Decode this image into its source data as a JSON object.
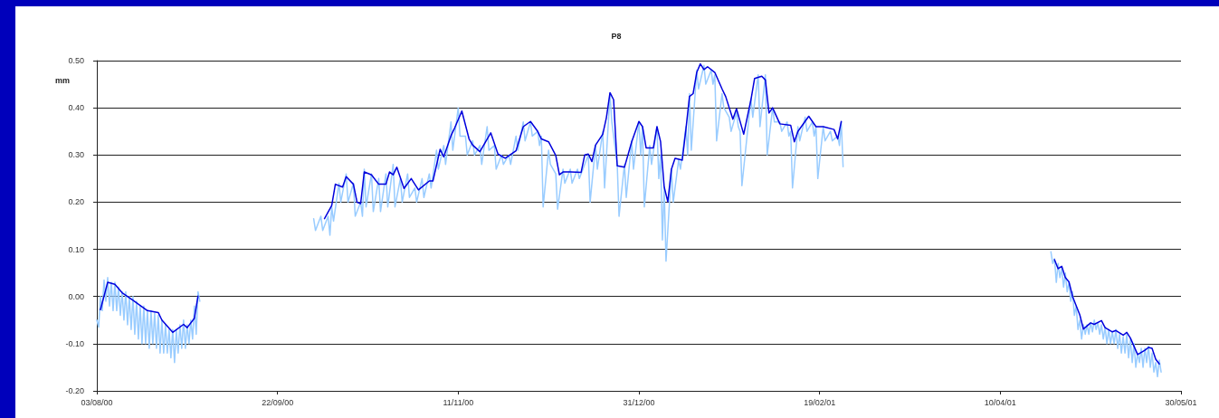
{
  "chart_data": {
    "type": "line",
    "title": "P8",
    "ylabel": "mm",
    "xlim": [
      "2000-08-03",
      "2001-05-30"
    ],
    "xticks": [
      {
        "value": "2000-08-03",
        "label": "03/08/00"
      },
      {
        "value": "2000-09-22",
        "label": "22/09/00"
      },
      {
        "value": "2000-11-11",
        "label": "11/11/00"
      },
      {
        "value": "2000-12-31",
        "label": "31/12/00"
      },
      {
        "value": "2001-02-19",
        "label": "19/02/01"
      },
      {
        "value": "2001-04-10",
        "label": "10/04/01"
      },
      {
        "value": "2001-05-30",
        "label": "30/05/01"
      }
    ],
    "ylim": [
      -0.2,
      0.5
    ],
    "yticks": [
      {
        "value": -0.2,
        "label": "-0.20"
      },
      {
        "value": -0.1,
        "label": "-0.10"
      },
      {
        "value": 0,
        "label": "0.00"
      },
      {
        "value": 0.1,
        "label": "0.10"
      },
      {
        "value": 0.2,
        "label": "0.20"
      },
      {
        "value": 0.3,
        "label": "0.30"
      },
      {
        "value": 0.4,
        "label": "0.40"
      },
      {
        "value": 0.5,
        "label": "0.50"
      }
    ],
    "grid": "y",
    "marker": "none",
    "series": [
      {
        "color": "#99ccff",
        "x": [
          "2000-08-03",
          "2000-08-03T12:00",
          "2000-08-04",
          "2000-08-04T12:00",
          "2000-08-05",
          "2000-08-05T12:00",
          "2000-08-06",
          "2000-08-06T12:00",
          "2000-08-07",
          "2000-08-07T12:00",
          "2000-08-08",
          "2000-08-08T12:00",
          "2000-08-09",
          "2000-08-09T12:00",
          "2000-08-10",
          "2000-08-10T12:00",
          "2000-08-11",
          "2000-08-11T12:00",
          "2000-08-12",
          "2000-08-12T12:00",
          "2000-08-13",
          "2000-08-13T12:00",
          "2000-08-14",
          "2000-08-14T12:00",
          "2000-08-15",
          "2000-08-15T12:00",
          "2000-08-16",
          "2000-08-16T12:00",
          "2000-08-17",
          "2000-08-17T12:00",
          "2000-08-18",
          "2000-08-18T12:00",
          "2000-08-19",
          "2000-08-19T12:00",
          "2000-08-20",
          "2000-08-20T12:00",
          "2000-08-21",
          "2000-08-21T12:00",
          "2000-08-22",
          "2000-08-22T12:00",
          "2000-08-23",
          "2000-08-23T12:00",
          "2000-08-24",
          "2000-08-24T12:00",
          "2000-08-25",
          "2000-08-25T12:00",
          "2000-08-26",
          "2000-08-26T12:00",
          "2000-08-27",
          "2000-08-27T12:00",
          "2000-08-28",
          "2000-08-28T12:00",
          "2000-08-29",
          "2000-08-29T12:00",
          "2000-08-30",
          "2000-08-30T12:00",
          "2000-08-31",
          "2000-08-31T12:00",
          "2000-09-15",
          "2000-10-02",
          "2000-10-02T12:00",
          "2000-10-04",
          "2000-10-04T12:00",
          "2000-10-06",
          "2000-10-06T12:00",
          "2000-10-07",
          "2000-10-07T12:00",
          "2000-10-09",
          "2000-10-09T12:00",
          "2000-10-11",
          "2000-10-11T12:00",
          "2000-10-13",
          "2000-10-13T12:00",
          "2000-10-15",
          "2000-10-15T12:00",
          "2000-10-16",
          "2000-10-16T12:00",
          "2000-10-18",
          "2000-10-18T12:00",
          "2000-10-20",
          "2000-10-20T12:00",
          "2000-10-22",
          "2000-10-22T12:00",
          "2000-10-24",
          "2000-10-24T12:00",
          "2000-10-26",
          "2000-10-26T12:00",
          "2000-10-28",
          "2000-10-28T12:00",
          "2000-10-30",
          "2000-10-30T12:00",
          "2000-11-01",
          "2000-11-01T12:00",
          "2000-11-03",
          "2000-11-03T12:00",
          "2000-11-05",
          "2000-11-05T12:00",
          "2000-11-07",
          "2000-11-07T12:00",
          "2000-11-09",
          "2000-11-09T12:00",
          "2000-11-11",
          "2000-11-11T12:00",
          "2000-11-13",
          "2000-11-13T12:00",
          "2000-11-15",
          "2000-11-15T12:00",
          "2000-11-17",
          "2000-11-17T12:00",
          "2000-11-19",
          "2000-11-19T12:00",
          "2000-11-21",
          "2000-11-21T12:00",
          "2000-11-23",
          "2000-11-23T12:00",
          "2000-11-25",
          "2000-11-25T12:00",
          "2000-11-27",
          "2000-11-27T12:00",
          "2000-11-29",
          "2000-11-29T12:00",
          "2000-12-01",
          "2000-12-01T12:00",
          "2000-12-03",
          "2000-12-03T12:00",
          "2000-12-04",
          "2000-12-04T12:00",
          "2000-12-06",
          "2000-12-06T12:00",
          "2000-12-08",
          "2000-12-08T12:00",
          "2000-12-10",
          "2000-12-10T12:00",
          "2000-12-12",
          "2000-12-12T12:00",
          "2000-12-14",
          "2000-12-14T12:00",
          "2000-12-17",
          "2000-12-17T12:00",
          "2000-12-19",
          "2000-12-19T12:00",
          "2000-12-21",
          "2000-12-21T12:00",
          "2000-12-23",
          "2000-12-23T12:00",
          "2000-12-25",
          "2000-12-25T12:00",
          "2000-12-27",
          "2000-12-27T12:00",
          "2000-12-29",
          "2000-12-29T12:00",
          "2000-12-31",
          "2000-12-31T12:00",
          "2001-01-01",
          "2001-01-01T12:00",
          "2001-01-03",
          "2001-01-03T12:00",
          "2001-01-05",
          "2001-01-05T12:00",
          "2001-01-06",
          "2001-01-06T12:00",
          "2001-01-07",
          "2001-01-07T12:00",
          "2001-01-09",
          "2001-01-09T12:00",
          "2001-01-11",
          "2001-01-11T12:00",
          "2001-01-13",
          "2001-01-13T12:00",
          "2001-01-14",
          "2001-01-14T12:00",
          "2001-01-16",
          "2001-01-16T12:00",
          "2001-01-18",
          "2001-01-18T12:00",
          "2001-01-20",
          "2001-01-20T12:00",
          "2001-01-21",
          "2001-01-21T12:00",
          "2001-01-23",
          "2001-01-23T12:00",
          "2001-01-25",
          "2001-01-25T12:00",
          "2001-01-27",
          "2001-01-27T12:00",
          "2001-01-28",
          "2001-01-28T12:00",
          "2001-01-31",
          "2001-01-31T12:00",
          "2001-02-02",
          "2001-02-02T12:00",
          "2001-02-04",
          "2001-02-04T12:00",
          "2001-02-06",
          "2001-02-06T12:00",
          "2001-02-08",
          "2001-02-08T12:00",
          "2001-02-10",
          "2001-02-10T12:00",
          "2001-02-11",
          "2001-02-11T12:00",
          "2001-02-13",
          "2001-02-13T12:00",
          "2001-02-15",
          "2001-02-15T12:00",
          "2001-02-17",
          "2001-02-17T12:00",
          "2001-02-18",
          "2001-02-18T12:00",
          "2001-02-20",
          "2001-02-20T12:00",
          "2001-02-22",
          "2001-02-22T12:00",
          "2001-02-24",
          "2001-02-24T12:00",
          "2001-02-25",
          "2001-02-25T12:00",
          "2001-03-30",
          "2001-04-24",
          "2001-04-24T12:00",
          "2001-04-25",
          "2001-04-25T12:00",
          "2001-04-26",
          "2001-04-26T12:00",
          "2001-04-27",
          "2001-04-27T12:00",
          "2001-04-28",
          "2001-04-28T12:00",
          "2001-04-29",
          "2001-04-29T12:00",
          "2001-04-30",
          "2001-04-30T12:00",
          "2001-05-01",
          "2001-05-01T12:00",
          "2001-05-02",
          "2001-05-02T12:00",
          "2001-05-03",
          "2001-05-03T12:00",
          "2001-05-04",
          "2001-05-04T12:00",
          "2001-05-05",
          "2001-05-05T12:00",
          "2001-05-06",
          "2001-05-06T12:00",
          "2001-05-07",
          "2001-05-07T12:00",
          "2001-05-08",
          "2001-05-08T12:00",
          "2001-05-09",
          "2001-05-09T12:00",
          "2001-05-10",
          "2001-05-10T12:00",
          "2001-05-11",
          "2001-05-11T12:00",
          "2001-05-12",
          "2001-05-12T12:00",
          "2001-05-13",
          "2001-05-13T12:00",
          "2001-05-14",
          "2001-05-14T12:00",
          "2001-05-15",
          "2001-05-15T12:00",
          "2001-05-16",
          "2001-05-16T12:00",
          "2001-05-17",
          "2001-05-17T12:00",
          "2001-05-18",
          "2001-05-18T12:00",
          "2001-05-19",
          "2001-05-19T12:00",
          "2001-05-20",
          "2001-05-20T12:00",
          "2001-05-21",
          "2001-05-21T12:00",
          "2001-05-22",
          "2001-05-22T12:00",
          "2001-05-23",
          "2001-05-23T12:00",
          "2001-05-24",
          "2001-05-24T12:00"
        ],
        "values": [
          -0.05,
          -0.065,
          0.0,
          -0.03,
          0.035,
          -0.01,
          0.04,
          -0.02,
          0.03,
          -0.03,
          0.03,
          -0.03,
          0.02,
          -0.04,
          0.01,
          -0.05,
          0.01,
          -0.06,
          0.0,
          -0.07,
          0.0,
          -0.08,
          -0.01,
          -0.09,
          -0.02,
          -0.1,
          -0.02,
          -0.1,
          -0.03,
          -0.11,
          -0.03,
          -0.1,
          -0.035,
          -0.11,
          -0.04,
          -0.12,
          -0.05,
          -0.12,
          -0.06,
          -0.12,
          -0.07,
          -0.13,
          -0.07,
          -0.14,
          -0.07,
          -0.12,
          -0.06,
          -0.11,
          -0.05,
          -0.11,
          -0.06,
          -0.1,
          -0.05,
          -0.09,
          -0.02,
          -0.08,
          0.01,
          -0.01,
          null,
          0.165,
          0.14,
          0.17,
          0.14,
          0.17,
          0.13,
          0.19,
          0.16,
          0.24,
          0.2,
          0.26,
          0.2,
          0.24,
          0.17,
          0.2,
          0.17,
          0.27,
          0.19,
          0.26,
          0.18,
          0.25,
          0.18,
          0.26,
          0.19,
          0.28,
          0.19,
          0.25,
          0.2,
          0.26,
          0.21,
          0.23,
          0.2,
          0.25,
          0.21,
          0.26,
          0.23,
          0.31,
          0.27,
          0.32,
          0.28,
          0.37,
          0.31,
          0.4,
          0.34,
          0.34,
          0.3,
          0.33,
          0.3,
          0.32,
          0.28,
          0.36,
          0.31,
          0.32,
          0.27,
          0.3,
          0.28,
          0.3,
          0.28,
          0.34,
          0.31,
          0.37,
          0.33,
          0.37,
          0.34,
          0.35,
          0.32,
          0.34,
          0.19,
          0.31,
          0.28,
          0.26,
          0.185,
          0.27,
          0.24,
          0.27,
          0.24,
          0.27,
          0.25,
          0.3,
          0.2,
          0.32,
          0.27,
          0.35,
          0.23,
          0.43,
          0.37,
          0.28,
          0.17,
          0.28,
          0.21,
          0.33,
          0.27,
          0.37,
          0.3,
          0.36,
          0.19,
          0.32,
          0.28,
          0.36,
          0.25,
          0.3,
          0.12,
          0.23,
          0.075,
          0.27,
          0.2,
          0.29,
          0.27,
          0.36,
          0.3,
          0.43,
          0.31,
          0.48,
          0.44,
          0.49,
          0.45,
          0.48,
          0.45,
          0.47,
          0.33,
          0.43,
          0.4,
          0.38,
          0.35,
          0.39,
          0.36,
          0.35,
          0.235,
          0.42,
          0.38,
          0.47,
          0.36,
          0.47,
          0.3,
          0.4,
          0.37,
          0.37,
          0.35,
          0.37,
          0.34,
          0.35,
          0.23,
          0.36,
          0.33,
          0.38,
          0.35,
          0.37,
          0.34,
          0.36,
          0.25,
          0.36,
          0.33,
          0.35,
          0.33,
          0.34,
          0.32,
          0.37,
          0.275,
          null,
          0.095,
          0.07,
          0.08,
          0.03,
          0.07,
          0.04,
          0.06,
          0.02,
          0.05,
          0.01,
          0.03,
          -0.01,
          0.01,
          -0.04,
          -0.02,
          -0.07,
          -0.05,
          -0.09,
          -0.06,
          -0.08,
          -0.06,
          -0.08,
          -0.055,
          -0.075,
          -0.05,
          -0.07,
          -0.055,
          -0.08,
          -0.06,
          -0.09,
          -0.065,
          -0.1,
          -0.07,
          -0.1,
          -0.075,
          -0.1,
          -0.07,
          -0.11,
          -0.08,
          -0.12,
          -0.085,
          -0.12,
          -0.08,
          -0.13,
          -0.09,
          -0.14,
          -0.1,
          -0.15,
          -0.12,
          -0.14,
          -0.11,
          -0.15,
          -0.11,
          -0.14,
          -0.105,
          -0.15,
          -0.12,
          -0.16,
          -0.14,
          -0.17,
          -0.135,
          -0.16
        ]
      },
      {
        "color": "#0000dd",
        "x": [
          "2000-08-04",
          "2000-08-06",
          "2000-08-08",
          "2000-08-10",
          "2000-08-13",
          "2000-08-17",
          "2000-08-20",
          "2000-08-21",
          "2000-08-24",
          "2000-08-27",
          "2000-08-28",
          "2000-08-30",
          "2000-08-31",
          "2000-09-15",
          "2000-10-05",
          "2000-10-07",
          "2000-10-08",
          "2000-10-10",
          "2000-10-11",
          "2000-10-13",
          "2000-10-14",
          "2000-10-15",
          "2000-10-16",
          "2000-10-18",
          "2000-10-20",
          "2000-10-22",
          "2000-10-23",
          "2000-10-24",
          "2000-10-25",
          "2000-10-27",
          "2000-10-29",
          "2000-10-31",
          "2000-11-03",
          "2000-11-04",
          "2000-11-06",
          "2000-11-07",
          "2000-11-09",
          "2000-11-10",
          "2000-11-12",
          "2000-11-14",
          "2000-11-15",
          "2000-11-17",
          "2000-11-20",
          "2000-11-22",
          "2000-11-24",
          "2000-11-27",
          "2000-11-29",
          "2000-12-01",
          "2000-12-03",
          "2000-12-04",
          "2000-12-06",
          "2000-12-08",
          "2000-12-09",
          "2000-12-10",
          "2000-12-12",
          "2000-12-15",
          "2000-12-16",
          "2000-12-17",
          "2000-12-18",
          "2000-12-19",
          "2000-12-21",
          "2000-12-22",
          "2000-12-23",
          "2000-12-24",
          "2000-12-25",
          "2000-12-27",
          "2000-12-29",
          "2000-12-31",
          "2001-01-01",
          "2001-01-02",
          "2001-01-04",
          "2001-01-05",
          "2001-01-06",
          "2001-01-07",
          "2001-01-08",
          "2001-01-09",
          "2001-01-10",
          "2001-01-12",
          "2001-01-13",
          "2001-01-14",
          "2001-01-15",
          "2001-01-16",
          "2001-01-17",
          "2001-01-18",
          "2001-01-19",
          "2001-01-21",
          "2001-01-23",
          "2001-01-24",
          "2001-01-26",
          "2001-01-27",
          "2001-01-29",
          "2001-01-31",
          "2001-02-01",
          "2001-02-03",
          "2001-02-04",
          "2001-02-05",
          "2001-02-06",
          "2001-02-08",
          "2001-02-11",
          "2001-02-12",
          "2001-02-13",
          "2001-02-16",
          "2001-02-18",
          "2001-02-20",
          "2001-02-23",
          "2001-02-24",
          "2001-02-25",
          "2001-03-30",
          "2001-04-25",
          "2001-04-26",
          "2001-04-27",
          "2001-04-28",
          "2001-04-29",
          "2001-04-30",
          "2001-05-02",
          "2001-05-03",
          "2001-05-05",
          "2001-05-06",
          "2001-05-08",
          "2001-05-09",
          "2001-05-11",
          "2001-05-12",
          "2001-05-14",
          "2001-05-15",
          "2001-05-16",
          "2001-05-18",
          "2001-05-20",
          "2001-05-21",
          "2001-05-22",
          "2001-05-23",
          "2001-05-24"
        ],
        "values": [
          -0.028,
          0.03,
          0.026,
          0.008,
          -0.008,
          -0.03,
          -0.034,
          -0.05,
          -0.076,
          -0.059,
          -0.066,
          -0.046,
          0.001,
          null,
          0.165,
          0.193,
          0.238,
          0.232,
          0.254,
          0.238,
          0.2,
          0.197,
          0.264,
          0.258,
          0.238,
          0.238,
          0.264,
          0.258,
          0.274,
          0.229,
          0.25,
          0.226,
          0.245,
          0.245,
          0.312,
          0.296,
          0.341,
          0.357,
          0.393,
          0.334,
          0.321,
          0.307,
          0.347,
          0.302,
          0.293,
          0.309,
          0.36,
          0.371,
          0.35,
          0.334,
          0.328,
          0.299,
          0.258,
          0.264,
          0.264,
          0.263,
          0.3,
          0.302,
          0.286,
          0.321,
          0.344,
          0.379,
          0.432,
          0.417,
          0.277,
          0.274,
          0.328,
          0.371,
          0.36,
          0.315,
          0.315,
          0.36,
          0.328,
          0.232,
          0.201,
          0.27,
          0.293,
          0.289,
          0.354,
          0.424,
          0.43,
          0.475,
          0.493,
          0.481,
          0.487,
          0.475,
          0.44,
          0.424,
          0.376,
          0.398,
          0.344,
          0.417,
          0.462,
          0.467,
          0.459,
          0.389,
          0.4,
          0.366,
          0.363,
          0.328,
          0.35,
          0.382,
          0.36,
          0.36,
          0.354,
          0.334,
          0.371,
          null,
          0.078,
          0.059,
          0.064,
          0.04,
          0.031,
          0.0,
          -0.039,
          -0.069,
          -0.056,
          -0.059,
          -0.051,
          -0.066,
          -0.075,
          -0.072,
          -0.082,
          -0.076,
          -0.088,
          -0.123,
          -0.114,
          -0.108,
          -0.11,
          -0.133,
          -0.143
        ]
      }
    ]
  }
}
